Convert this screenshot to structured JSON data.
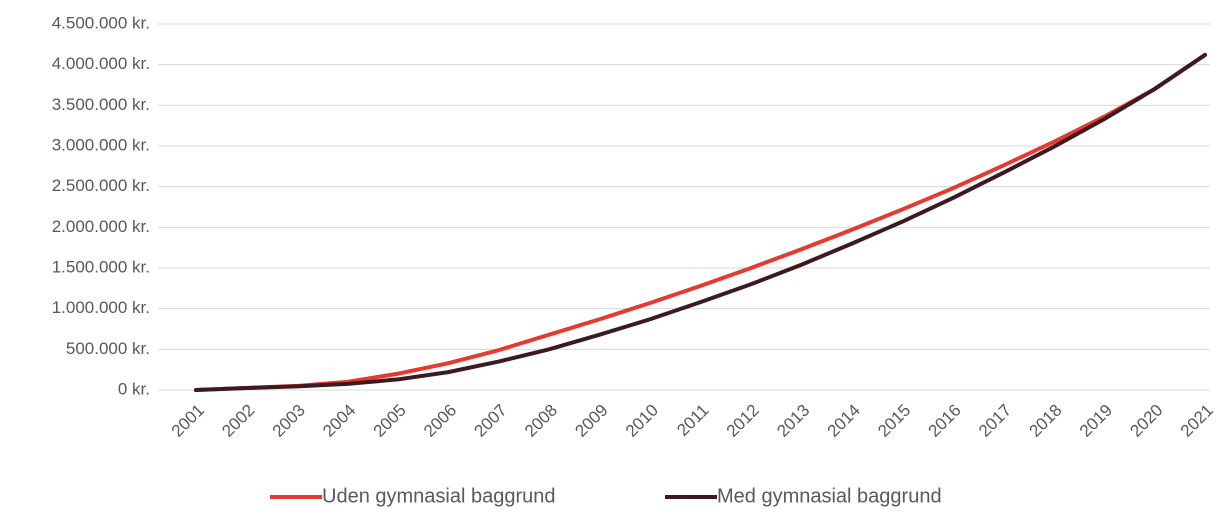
{
  "chart_data": {
    "type": "line",
    "categories": [
      "2001",
      "2002",
      "2003",
      "2004",
      "2005",
      "2006",
      "2007",
      "2008",
      "2009",
      "2010",
      "2011",
      "2012",
      "2013",
      "2014",
      "2015",
      "2016",
      "2017",
      "2018",
      "2019",
      "2020",
      "2021"
    ],
    "series": [
      {
        "name": "Uden gymnasial baggrund",
        "color": "#e8392f",
        "values": [
          0,
          25000,
          50000,
          100000,
          200000,
          330000,
          490000,
          680000,
          870000,
          1070000,
          1280000,
          1500000,
          1730000,
          1970000,
          2220000,
          2480000,
          2760000,
          3050000,
          3360000,
          3700000,
          4120000
        ]
      },
      {
        "name": "Med gymnasial baggrund",
        "color": "#3b1a22",
        "values": [
          0,
          25000,
          45000,
          75000,
          130000,
          220000,
          350000,
          500000,
          680000,
          870000,
          1080000,
          1300000,
          1540000,
          1800000,
          2070000,
          2360000,
          2670000,
          2990000,
          3330000,
          3700000,
          4120000
        ]
      }
    ],
    "ylim": [
      0,
      4500000
    ],
    "yticks": [
      {
        "value": 0,
        "label": "0 kr."
      },
      {
        "value": 500000,
        "label": "500.000 kr."
      },
      {
        "value": 1000000,
        "label": "1.000.000 kr."
      },
      {
        "value": 1500000,
        "label": "1.500.000 kr."
      },
      {
        "value": 2000000,
        "label": "2.000.000 kr."
      },
      {
        "value": 2500000,
        "label": "2.500.000 kr."
      },
      {
        "value": 3000000,
        "label": "3.000.000 kr."
      },
      {
        "value": 3500000,
        "label": "3.500.000 kr."
      },
      {
        "value": 4000000,
        "label": "4.000.000 kr."
      },
      {
        "value": 4500000,
        "label": "4.500.000 kr."
      }
    ],
    "grid": true,
    "legend": "bottom"
  }
}
